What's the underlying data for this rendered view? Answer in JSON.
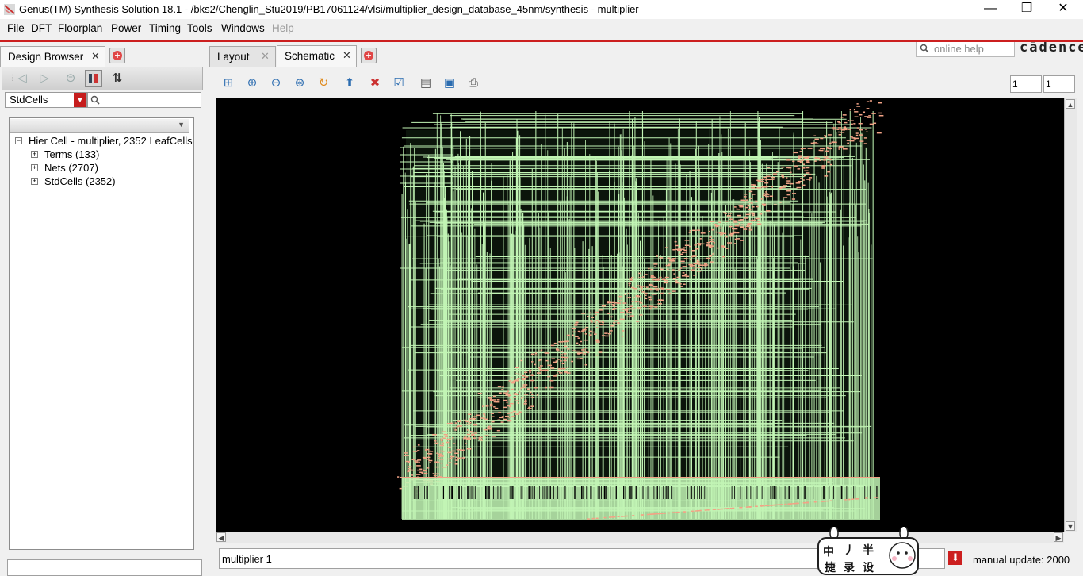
{
  "window": {
    "title": "Genus(TM) Synthesis Solution 18.1 - /bks2/Chenglin_Stu2019/PB17061124/vlsi/multiplier_design_database_45nm/synthesis - multiplier",
    "controls": {
      "minimize": "—",
      "restore": "❐",
      "close": "✕"
    }
  },
  "menu": {
    "items": [
      "File",
      "DFT",
      "Floorplan",
      "Power",
      "Timing",
      "Tools",
      "Windows",
      "Help"
    ],
    "disabled": [
      "Help"
    ],
    "search_placeholder": "online help",
    "brand": "cādence"
  },
  "left_panel": {
    "tab_label": "Design Browser",
    "filter_value": "StdCells",
    "tree": {
      "root": "Hier Cell - multiplier, 2352 LeafCells",
      "children": [
        "Terms (133)",
        "Nets (2707)",
        "StdCells (2352)"
      ]
    }
  },
  "right_panel": {
    "tabs": [
      {
        "label": "Layout",
        "active": false
      },
      {
        "label": "Schematic",
        "active": true
      }
    ],
    "page_field_1": "1",
    "page_field_2": "1",
    "status_text": "multiplier 1",
    "update_text": "manual update: 2000"
  },
  "sticker": {
    "chars": [
      "中",
      "丿",
      "半",
      "捷",
      "录",
      "设"
    ]
  },
  "colors": {
    "accent_red": "#cc1f1f",
    "canvas_bg": "#000000",
    "wire_green": "#c2f5b5",
    "cell_salmon": "#f3a386"
  }
}
